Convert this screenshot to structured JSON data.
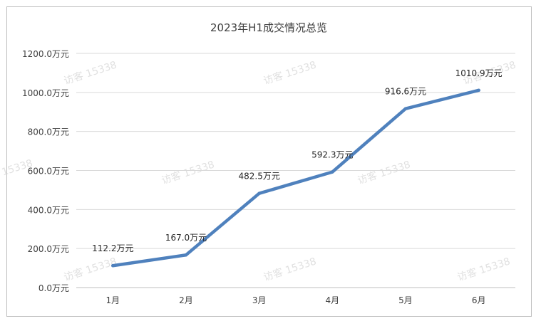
{
  "watermark_text": "访客 15338",
  "chart_data": {
    "type": "line",
    "title": "2023年H1成交情况总览",
    "xlabel": "",
    "ylabel": "",
    "categories": [
      "1月",
      "2月",
      "3月",
      "4月",
      "5月",
      "6月"
    ],
    "values": [
      112.2,
      167.0,
      482.5,
      592.3,
      916.6,
      1010.9
    ],
    "value_labels": [
      "112.2万元",
      "167.0万元",
      "482.5万元",
      "592.3万元",
      "916.6万元",
      "1010.9万元"
    ],
    "y_ticks": [
      0,
      200,
      400,
      600,
      800,
      1000,
      1200
    ],
    "y_tick_labels": [
      "0.0万元",
      "200.0万元",
      "400.0万元",
      "600.0万元",
      "800.0万元",
      "1000.0万元",
      "1200.0万元"
    ],
    "ylim": [
      0,
      1200
    ],
    "grid": true,
    "legend": "none",
    "line_color": "#4f81bd",
    "grid_color": "#d9d9d9"
  }
}
